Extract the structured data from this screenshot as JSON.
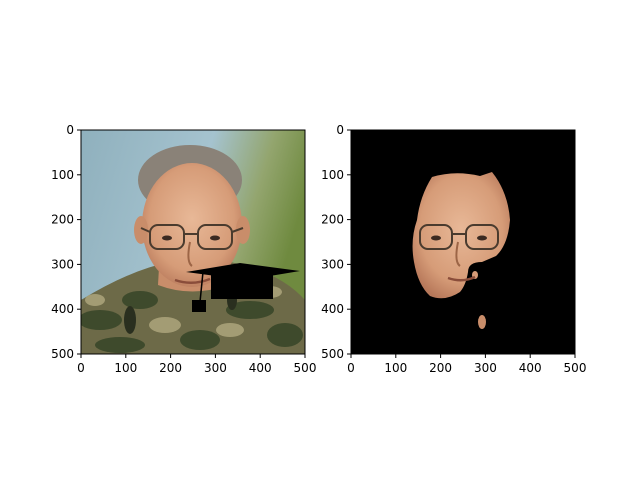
{
  "figure": {
    "background": "#ffffff"
  },
  "chart_data": [
    {
      "type": "image",
      "title": "",
      "xlabel": "",
      "ylabel": "",
      "xlim": [
        0,
        500
      ],
      "ylim": [
        500,
        0
      ],
      "xticks": [
        0,
        100,
        200,
        300,
        400,
        500
      ],
      "yticks": [
        0,
        100,
        200,
        300,
        400,
        500
      ],
      "grid": false,
      "content": "portrait photo of a man in camouflage uniform with glasses, with a black graduation cap overlay"
    },
    {
      "type": "image",
      "title": "",
      "xlabel": "",
      "ylabel": "",
      "xlim": [
        0,
        500
      ],
      "ylim": [
        500,
        0
      ],
      "xticks": [
        0,
        100,
        200,
        300,
        400,
        500
      ],
      "yticks": [
        0,
        100,
        200,
        300,
        400,
        500
      ],
      "grid": false,
      "content": "segmented face mask: skin-colored face region on a black background"
    }
  ],
  "colors": {
    "axis": "#000000",
    "mask_background": "#000000",
    "skin": "#d9a07e",
    "camo_dark": "#3e4a2c",
    "camo_light": "#8d8a63",
    "sky": "#8fb4c4",
    "cap": "#000000"
  }
}
